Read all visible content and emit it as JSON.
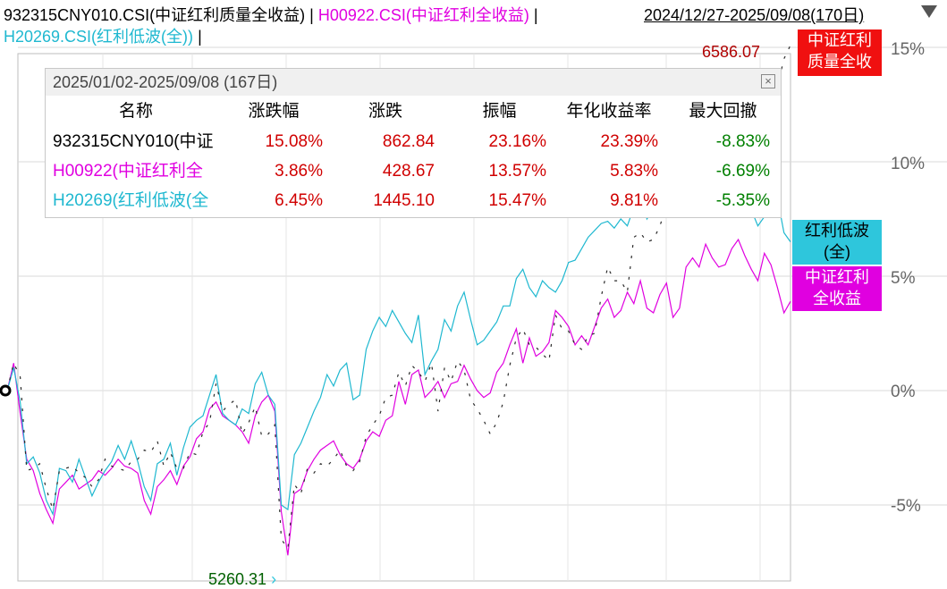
{
  "header": {
    "legend": [
      {
        "text": "932315CNY010.CSI(中证红利质量全收益)",
        "color": "#000000"
      },
      {
        "text": "H00922.CSI(中证红利全收益)",
        "color": "#e000e0"
      },
      {
        "text": "H20269.CSI(红利低波(全))",
        "color": "#1fb8d0"
      }
    ],
    "separator": "|",
    "date_range": "2024/12/27-2025/09/08(170日)"
  },
  "axis": {
    "y_labels": [
      "15%",
      "10%",
      "5%",
      "0%",
      "-5%"
    ]
  },
  "tags": {
    "s1": "中证红利\n质量全收",
    "s3": "红利低波\n(全)",
    "s2": "中证红利\n全收益"
  },
  "markers": {
    "max_value": "6586.07",
    "min_value": "5260.31",
    "min_arrow": "›"
  },
  "stats_table": {
    "title": "2025/01/02-2025/09/08 (167日)",
    "close_glyph": "×",
    "columns": [
      "名称",
      "涨跌幅",
      "涨跌",
      "振幅",
      "年化收益率",
      "最大回撤"
    ],
    "rows": [
      {
        "name": "932315CNY010(中证",
        "pct": "15.08%",
        "chg": "862.84",
        "amp": "23.16%",
        "ann": "23.39%",
        "mdd": "-8.83%",
        "color": "#000000"
      },
      {
        "name": "H00922(中证红利全",
        "pct": "3.86%",
        "chg": "428.67",
        "amp": "13.57%",
        "ann": "5.83%",
        "mdd": "-6.69%",
        "color": "#e000e0"
      },
      {
        "name": "H20269(红利低波(全",
        "pct": "6.45%",
        "chg": "1445.10",
        "amp": "15.47%",
        "ann": "9.81%",
        "mdd": "-5.35%",
        "color": "#1fb8d0"
      }
    ]
  },
  "chart_data": {
    "type": "line",
    "ylim": [
      -8,
      16
    ],
    "ylabel": "",
    "xlabel": "",
    "y_unit": "%",
    "grid": true,
    "series": [
      {
        "name": "932315CNY010.CSI(中证红利质量全收益)",
        "color": "#000000",
        "style": "dash",
        "values": [
          0,
          1.2,
          0.6,
          -3.5,
          -3.4,
          -3.2,
          -4.3,
          -5.2,
          -3.5,
          -3.4,
          -3.3,
          -3.6,
          -3.8,
          -4.2,
          -3.9,
          -3.0,
          -3.3,
          -3.4,
          -3.5,
          -3.1,
          -3.0,
          -2.6,
          -2.7,
          -2.2,
          -3.3,
          -2.7,
          -3.4,
          -3.4,
          -2.7,
          -2.8,
          -1.8,
          -1.4,
          0.3,
          -0.9,
          -0.6,
          -0.4,
          -1.9,
          -1.4,
          -0.7,
          -2.0,
          -1.9,
          -1.5,
          -6.5,
          -6.9,
          -4.1,
          -4.5,
          -3.4,
          -3.6,
          -3.2,
          -3.3,
          -3.0,
          -2.6,
          -3.3,
          -3.5,
          -3.1,
          -2.0,
          -1.5,
          -1.1,
          -0.3,
          -0.2,
          0.8,
          0.2,
          1.1,
          0.8,
          0.4,
          1.2,
          -0.9,
          1.0,
          0.4,
          1.3,
          0.9,
          -0.4,
          -0.8,
          -1.3,
          -1.9,
          -1.4,
          -0.5,
          1.1,
          2.3,
          2.7,
          2.0,
          1.9,
          1.6,
          1.3,
          3.3,
          2.7,
          2.6,
          2.0,
          1.8,
          2.4,
          2.5,
          4.1,
          5.4,
          4.8,
          4.8,
          4.3,
          6.7,
          6.9,
          6.5,
          6.6,
          7.2,
          8.1,
          8.3,
          8.5,
          7.8,
          9.3,
          9.3,
          9.5,
          9.8,
          9.8,
          10.3,
          10.3,
          10.3,
          11.8,
          11.5,
          11.2,
          12.0,
          12.8,
          13.3,
          14.5,
          15.1
        ]
      },
      {
        "name": "H00922.CSI(中证红利全收益)",
        "color": "#e000e0",
        "style": "solid",
        "values": [
          0,
          1.2,
          -1.0,
          -3.0,
          -3.5,
          -4.5,
          -5.2,
          -5.8,
          -4.3,
          -4.0,
          -3.7,
          -4.3,
          -4.1,
          -3.9,
          -3.5,
          -3.7,
          -3.4,
          -3.0,
          -3.3,
          -3.4,
          -3.6,
          -4.8,
          -5.4,
          -4.2,
          -3.9,
          -3.5,
          -4.1,
          -3.3,
          -2.9,
          -2.1,
          -1.8,
          -0.8,
          -0.5,
          -1.1,
          -1.3,
          -1.5,
          -1.8,
          -2.3,
          -1.1,
          -0.5,
          -0.2,
          -0.9,
          -5.3,
          -7.2,
          -4.5,
          -4.3,
          -3.5,
          -3.0,
          -2.6,
          -2.4,
          -2.2,
          -2.8,
          -3.2,
          -3.4,
          -3.0,
          -2.2,
          -1.8,
          -2.0,
          -1.3,
          -1.1,
          0.4,
          -0.6,
          0.7,
          0.9,
          -0.3,
          0.0,
          0.4,
          -0.3,
          0.3,
          0.4,
          1.1,
          0.5,
          0.0,
          -0.3,
          -0.1,
          0.8,
          1.2,
          2.0,
          2.7,
          1.2,
          2.3,
          1.5,
          1.7,
          2.1,
          3.5,
          3.2,
          2.8,
          2.0,
          2.4,
          2.0,
          2.8,
          3.6,
          4.0,
          3.2,
          3.5,
          4.3,
          3.8,
          4.8,
          3.6,
          3.4,
          4.2,
          4.7,
          3.2,
          3.6,
          5.4,
          5.8,
          5.4,
          6.4,
          5.8,
          5.4,
          5.5,
          6.2,
          6.6,
          5.9,
          5.3,
          4.8,
          6.0,
          5.5,
          4.5,
          3.4,
          3.9
        ]
      },
      {
        "name": "H20269.CSI(红利低波(全))",
        "color": "#1fb8d0",
        "style": "solid",
        "values": [
          0,
          1.0,
          -0.5,
          -3.2,
          -2.9,
          -3.6,
          -4.8,
          -5.4,
          -3.4,
          -3.5,
          -4.0,
          -3.0,
          -3.8,
          -4.6,
          -4.0,
          -3.5,
          -3.1,
          -2.4,
          -3.0,
          -2.2,
          -3.1,
          -4.2,
          -4.8,
          -3.2,
          -3.0,
          -2.3,
          -3.7,
          -2.5,
          -1.6,
          -1.3,
          -1.1,
          -0.2,
          0.7,
          -1.0,
          -1.3,
          -1.5,
          -0.8,
          -1.0,
          0.3,
          0.8,
          -0.2,
          -0.6,
          -5.0,
          -5.2,
          -2.8,
          -2.3,
          -1.6,
          -0.9,
          -0.3,
          0.7,
          0.2,
          0.9,
          1.2,
          -0.4,
          -0.2,
          1.8,
          2.6,
          3.2,
          2.8,
          3.5,
          3.0,
          2.5,
          2.1,
          3.3,
          0.7,
          1.3,
          1.8,
          3.1,
          2.6,
          3.7,
          4.3,
          3.1,
          2.0,
          2.2,
          2.6,
          3.0,
          3.7,
          3.7,
          4.9,
          5.3,
          4.5,
          4.1,
          4.8,
          4.5,
          4.3,
          4.8,
          5.6,
          5.7,
          6.2,
          6.7,
          7.0,
          7.3,
          7.4,
          7.1,
          7.5,
          7.2,
          8.0,
          9.1,
          7.5,
          7.9,
          7.7,
          7.9,
          8.0,
          7.8,
          8.2,
          8.6,
          9.2,
          8.3,
          8.1,
          8.0,
          8.5,
          8.0,
          8.1,
          8.4,
          7.9,
          7.2,
          7.6,
          7.8,
          8.4,
          6.9,
          6.5
        ]
      }
    ]
  }
}
